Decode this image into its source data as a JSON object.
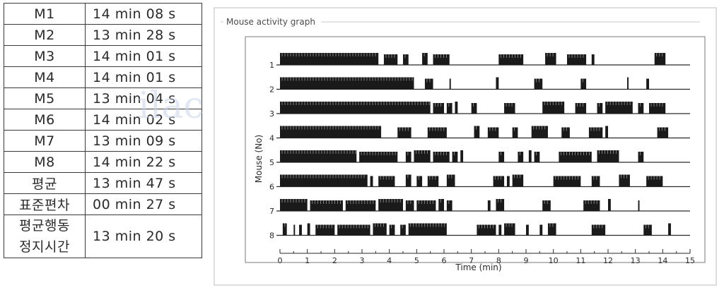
{
  "table": {
    "rows": [
      {
        "label": "M1",
        "value": "14 min 08 s"
      },
      {
        "label": "M2",
        "value": "13 min 28 s"
      },
      {
        "label": "M3",
        "value": "14 min 01 s"
      },
      {
        "label": "M4",
        "value": "14 min 01 s"
      },
      {
        "label": "M5",
        "value": "13 min 04 s"
      },
      {
        "label": "M6",
        "value": "14 min 02 s"
      },
      {
        "label": "M7",
        "value": "13 min 09 s"
      },
      {
        "label": "M8",
        "value": "14 min 22 s"
      },
      {
        "label": "평균",
        "value": "13 min 47 s"
      },
      {
        "label": "표준편차",
        "value": "00 min 27 s"
      }
    ],
    "last_row": {
      "label_line1": "평균행동",
      "label_line2": "정지시간",
      "value": "13 min 20 s"
    }
  },
  "watermark": "ilac",
  "chart_data": {
    "type": "event-raster",
    "title": "Mouse activity graph",
    "xlabel": "Time (min)",
    "ylabel": "Mouse (No)",
    "xlim": [
      0,
      15
    ],
    "x_ticks": [
      0,
      1,
      2,
      3,
      4,
      5,
      6,
      7,
      8,
      9,
      10,
      11,
      12,
      13,
      14,
      15
    ],
    "y_ticks": [
      "1",
      "2",
      "3",
      "4",
      "5",
      "6",
      "7",
      "8"
    ],
    "bar_color": "#1a1a1a",
    "series": [
      {
        "name": "1",
        "bursts": [
          [
            0.0,
            3.6
          ],
          [
            3.8,
            4.3
          ],
          [
            4.5,
            4.7
          ],
          [
            5.2,
            5.4
          ],
          [
            5.6,
            6.2
          ],
          [
            8.0,
            8.9
          ],
          [
            9.7,
            10.1
          ],
          [
            10.5,
            11.2
          ],
          [
            11.4,
            11.5
          ],
          [
            13.7,
            14.1
          ]
        ]
      },
      {
        "name": "2",
        "bursts": [
          [
            0.0,
            4.9
          ],
          [
            5.3,
            5.6
          ],
          [
            6.2,
            6.25
          ],
          [
            7.9,
            8.0
          ],
          [
            9.3,
            9.6
          ],
          [
            11.0,
            11.2
          ],
          [
            12.7,
            12.75
          ],
          [
            13.4,
            13.5
          ]
        ]
      },
      {
        "name": "3",
        "bursts": [
          [
            0.0,
            5.5
          ],
          [
            5.6,
            6.0
          ],
          [
            6.1,
            6.3
          ],
          [
            6.4,
            6.5
          ],
          [
            7.0,
            7.2
          ],
          [
            8.2,
            8.6
          ],
          [
            9.6,
            10.4
          ],
          [
            10.8,
            11.2
          ],
          [
            11.6,
            11.8
          ],
          [
            11.9,
            12.9
          ],
          [
            13.1,
            13.3
          ],
          [
            13.5,
            14.1
          ]
        ]
      },
      {
        "name": "4",
        "bursts": [
          [
            0.0,
            3.7
          ],
          [
            4.3,
            4.8
          ],
          [
            5.4,
            6.1
          ],
          [
            7.1,
            7.3
          ],
          [
            7.6,
            8.0
          ],
          [
            8.5,
            8.7
          ],
          [
            9.2,
            9.8
          ],
          [
            10.3,
            10.6
          ],
          [
            11.3,
            11.8
          ],
          [
            11.9,
            12.0
          ],
          [
            13.8,
            14.2
          ]
        ]
      },
      {
        "name": "5",
        "bursts": [
          [
            0.0,
            2.8
          ],
          [
            2.9,
            4.3
          ],
          [
            4.6,
            4.8
          ],
          [
            4.9,
            5.5
          ],
          [
            5.6,
            6.2
          ],
          [
            6.3,
            6.5
          ],
          [
            6.6,
            6.7
          ],
          [
            8.0,
            8.2
          ],
          [
            8.7,
            8.9
          ],
          [
            9.1,
            9.2
          ],
          [
            9.3,
            9.5
          ],
          [
            10.2,
            11.4
          ],
          [
            11.6,
            12.4
          ],
          [
            13.1,
            13.3
          ]
        ]
      },
      {
        "name": "6",
        "bursts": [
          [
            0.0,
            3.2
          ],
          [
            3.3,
            3.4
          ],
          [
            3.6,
            4.2
          ],
          [
            4.6,
            4.8
          ],
          [
            5.0,
            5.2
          ],
          [
            5.4,
            5.8
          ],
          [
            6.1,
            6.4
          ],
          [
            7.8,
            8.2
          ],
          [
            8.3,
            8.4
          ],
          [
            8.5,
            8.9
          ],
          [
            10.0,
            11.0
          ],
          [
            11.4,
            11.7
          ],
          [
            12.4,
            12.8
          ],
          [
            13.4,
            14.0
          ]
        ]
      },
      {
        "name": "7",
        "bursts": [
          [
            0.0,
            1.0
          ],
          [
            1.1,
            2.3
          ],
          [
            2.4,
            3.5
          ],
          [
            3.6,
            4.5
          ],
          [
            4.6,
            4.9
          ],
          [
            5.0,
            5.7
          ],
          [
            5.8,
            6.0
          ],
          [
            6.1,
            6.3
          ],
          [
            7.6,
            7.7
          ],
          [
            7.9,
            8.2
          ],
          [
            9.6,
            9.9
          ],
          [
            11.1,
            11.7
          ],
          [
            12.0,
            12.1
          ],
          [
            13.1,
            13.15
          ]
        ]
      },
      {
        "name": "8",
        "bursts": [
          [
            0.1,
            0.25
          ],
          [
            0.5,
            0.55
          ],
          [
            0.7,
            0.8
          ],
          [
            1.0,
            1.1
          ],
          [
            1.3,
            2.0
          ],
          [
            2.1,
            3.3
          ],
          [
            3.4,
            3.9
          ],
          [
            4.0,
            4.2
          ],
          [
            4.4,
            4.6
          ],
          [
            4.7,
            6.1
          ],
          [
            7.2,
            7.9
          ],
          [
            8.0,
            8.1
          ],
          [
            8.2,
            8.6
          ],
          [
            9.0,
            9.1
          ],
          [
            9.5,
            9.6
          ],
          [
            9.8,
            10.1
          ],
          [
            11.4,
            11.9
          ],
          [
            13.3,
            13.6
          ],
          [
            14.2,
            14.3
          ]
        ]
      }
    ]
  }
}
